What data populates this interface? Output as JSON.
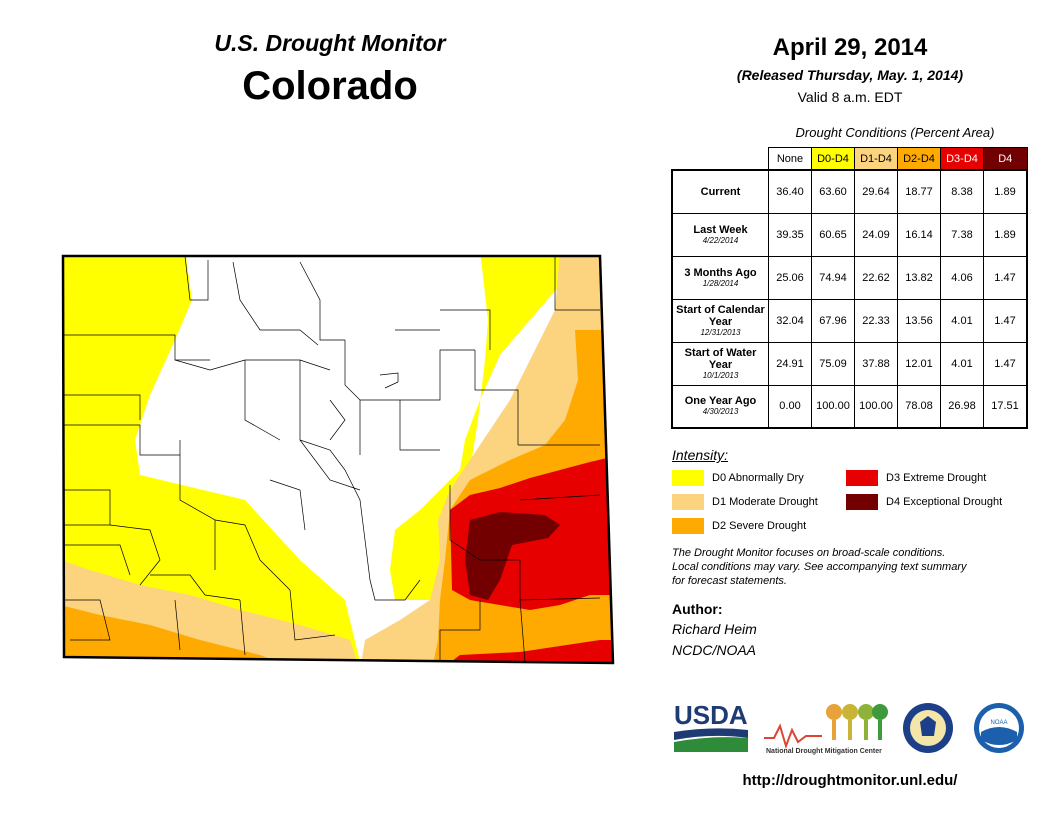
{
  "header": {
    "monitor_title": "U.S. Drought Monitor",
    "state": "Colorado",
    "date": "April 29, 2014",
    "released": "(Released Thursday, May. 1, 2014)",
    "valid": "Valid 8 a.m. EDT"
  },
  "table": {
    "caption": "Drought Conditions (Percent Area)",
    "columns": [
      {
        "label": "None",
        "color": "#ffffff",
        "text_color": "#000000"
      },
      {
        "label": "D0-D4",
        "color": "#ffff00",
        "text_color": "#000000"
      },
      {
        "label": "D1-D4",
        "color": "#fcd37f",
        "text_color": "#000000"
      },
      {
        "label": "D2-D4",
        "color": "#ffaa00",
        "text_color": "#000000"
      },
      {
        "label": "D3-D4",
        "color": "#e60000",
        "text_color": "#ffffff"
      },
      {
        "label": "D4",
        "color": "#730000",
        "text_color": "#ffffff"
      }
    ],
    "rows": [
      {
        "label": "Current",
        "date": "",
        "values": [
          "36.40",
          "63.60",
          "29.64",
          "18.77",
          "8.38",
          "1.89"
        ]
      },
      {
        "label": "Last Week",
        "date": "4/22/2014",
        "values": [
          "39.35",
          "60.65",
          "24.09",
          "16.14",
          "7.38",
          "1.89"
        ]
      },
      {
        "label": "3 Months Ago",
        "date": "1/28/2014",
        "values": [
          "25.06",
          "74.94",
          "22.62",
          "13.82",
          "4.06",
          "1.47"
        ]
      },
      {
        "label": "Start of Calendar Year",
        "date": "12/31/2013",
        "values": [
          "32.04",
          "67.96",
          "22.33",
          "13.56",
          "4.01",
          "1.47"
        ]
      },
      {
        "label": "Start of Water Year",
        "date": "10/1/2013",
        "values": [
          "24.91",
          "75.09",
          "37.88",
          "12.01",
          "4.01",
          "1.47"
        ]
      },
      {
        "label": "One Year Ago",
        "date": "4/30/2013",
        "values": [
          "0.00",
          "100.00",
          "100.00",
          "78.08",
          "26.98",
          "17.51"
        ]
      }
    ]
  },
  "legend": {
    "title": "Intensity:",
    "items": [
      {
        "label": "D0 Abnormally Dry",
        "color": "#ffff00"
      },
      {
        "label": "D1 Moderate Drought",
        "color": "#fcd37f"
      },
      {
        "label": "D2 Severe Drought",
        "color": "#ffaa00"
      },
      {
        "label": "D3 Extreme Drought",
        "color": "#e60000"
      },
      {
        "label": "D4 Exceptional Drought",
        "color": "#730000"
      }
    ]
  },
  "note": {
    "line1": "The Drought Monitor focuses on broad-scale conditions.",
    "line2": "Local conditions may vary. See accompanying text summary",
    "line3": "for forecast statements."
  },
  "author": {
    "label": "Author:",
    "name": "Richard Heim",
    "org": "NCDC/NOAA"
  },
  "logos": {
    "usda": "USDA",
    "ndmc": "National Drought Mitigation Center",
    "noaa": "NOAA"
  },
  "url": "http://droughtmonitor.unl.edu/"
}
